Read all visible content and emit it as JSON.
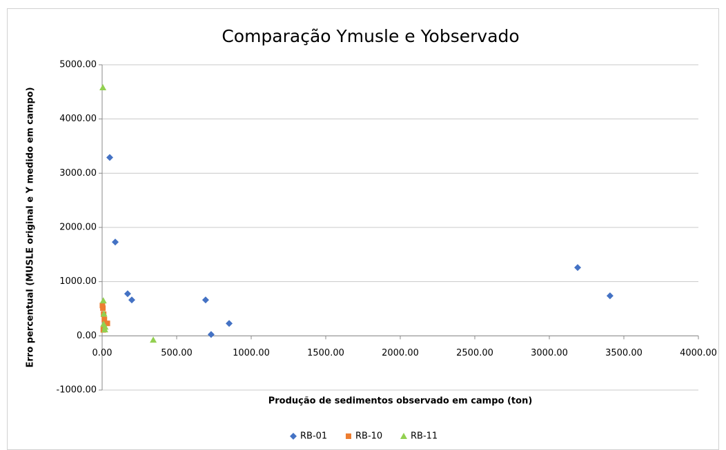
{
  "chart_data": {
    "type": "scatter",
    "title": "Comparação Ymusle e Yobservado",
    "x_label": "Produção de sedimentos observado em campo (ton)",
    "y_label": "Erro percentual (MUSLE original e Y medido em campo)",
    "xlim": [
      0,
      4000
    ],
    "ylim": [
      -1000,
      5000
    ],
    "xticks": [
      {
        "value": 0,
        "label": "0.00"
      },
      {
        "value": 500,
        "label": "500.00"
      },
      {
        "value": 1000,
        "label": "1000.00"
      },
      {
        "value": 1500,
        "label": "1500.00"
      },
      {
        "value": 2000,
        "label": "2000.00"
      },
      {
        "value": 2500,
        "label": "2500.00"
      },
      {
        "value": 3000,
        "label": "3000.00"
      },
      {
        "value": 3500,
        "label": "3500.00"
      },
      {
        "value": 4000,
        "label": "4000.00"
      }
    ],
    "yticks": [
      {
        "value": -1000,
        "label": "-1000.00"
      },
      {
        "value": 0,
        "label": "0.00"
      },
      {
        "value": 1000,
        "label": "1000.00"
      },
      {
        "value": 2000,
        "label": "2000.00"
      },
      {
        "value": 3000,
        "label": "3000.00"
      },
      {
        "value": 4000,
        "label": "4000.00"
      },
      {
        "value": 5000,
        "label": "5000.00"
      }
    ],
    "grid": true,
    "legend": "bottom",
    "series": [
      {
        "name": "RB-01",
        "color": "#4472c4",
        "marker": "diamond",
        "x": [
          51,
          88,
          171,
          199,
          694,
          731,
          852,
          3190,
          3407
        ],
        "values": [
          3290,
          1730,
          776,
          662,
          662,
          25,
          229,
          1260,
          738
        ]
      },
      {
        "name": "RB-10",
        "color": "#ed7d31",
        "marker": "square",
        "x": [
          2,
          5,
          10,
          15,
          35,
          8,
          12
        ],
        "values": [
          560,
          510,
          400,
          300,
          230,
          110,
          150
        ]
      },
      {
        "name": "RB-11",
        "color": "#92d050",
        "marker": "triangle",
        "x": [
          5,
          8,
          12,
          10,
          18,
          20,
          343
        ],
        "values": [
          4580,
          650,
          407,
          216,
          115,
          165,
          -76
        ]
      }
    ]
  }
}
